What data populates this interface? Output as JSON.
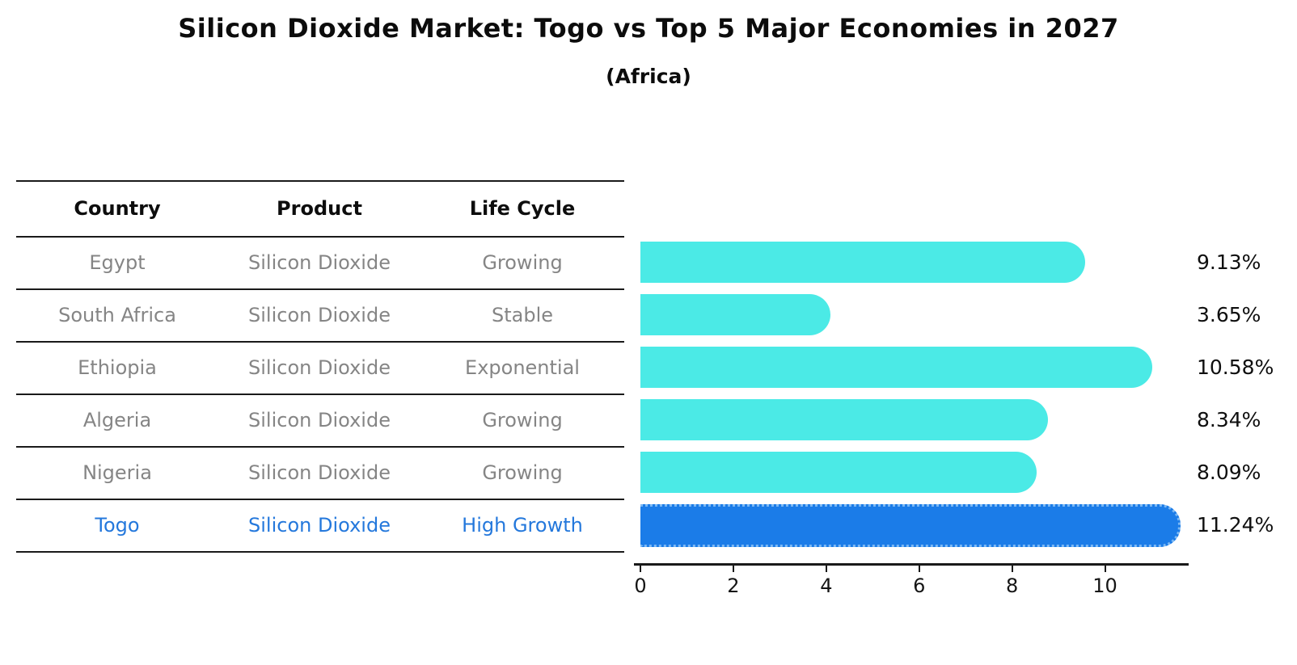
{
  "title": "Silicon Dioxide Market: Togo vs Top 5 Major Economies in 2027",
  "subtitle": "(Africa)",
  "table": {
    "columns": [
      "Country",
      "Product",
      "Life Cycle"
    ],
    "rows": [
      {
        "country": "Egypt",
        "product": "Silicon Dioxide",
        "life_cycle": "Growing",
        "highlight": false
      },
      {
        "country": "South Africa",
        "product": "Silicon Dioxide",
        "life_cycle": "Stable",
        "highlight": false
      },
      {
        "country": "Ethiopia",
        "product": "Silicon Dioxide",
        "life_cycle": "Exponential",
        "highlight": false
      },
      {
        "country": "Algeria",
        "product": "Silicon Dioxide",
        "life_cycle": "Growing",
        "highlight": false
      },
      {
        "country": "Nigeria",
        "product": "Silicon Dioxide",
        "life_cycle": "Growing",
        "highlight": false
      },
      {
        "country": "Togo",
        "product": "Silicon Dioxide",
        "life_cycle": "High Growth",
        "highlight": true
      }
    ]
  },
  "chart_data": {
    "type": "bar",
    "orientation": "horizontal",
    "title": "Silicon Dioxide Market: Togo vs Top 5 Major Economies in 2027",
    "subtitle": "(Africa)",
    "categories": [
      "Egypt",
      "South Africa",
      "Ethiopia",
      "Algeria",
      "Nigeria",
      "Togo"
    ],
    "values": [
      9.13,
      3.65,
      10.58,
      8.34,
      8.09,
      11.24
    ],
    "labels": [
      "9.13%",
      "3.65%",
      "10.58%",
      "8.34%",
      "8.09%",
      "11.24%"
    ],
    "xlabel": "",
    "ylabel": "",
    "xlim": [
      0,
      11.8
    ],
    "xticks": [
      0,
      2,
      4,
      6,
      8,
      10
    ],
    "grid": false,
    "legend": false,
    "bar_color": "#4BEAE6",
    "highlight_index": 5,
    "highlight_color": "#1B7CE8",
    "highlight_border_color": "#7db9f4"
  },
  "colors": {
    "background": "#ffffff",
    "text": "#0c0c0c",
    "muted_text": "#858585",
    "highlight_text": "#2478DC",
    "line": "#1a1a1a"
  }
}
